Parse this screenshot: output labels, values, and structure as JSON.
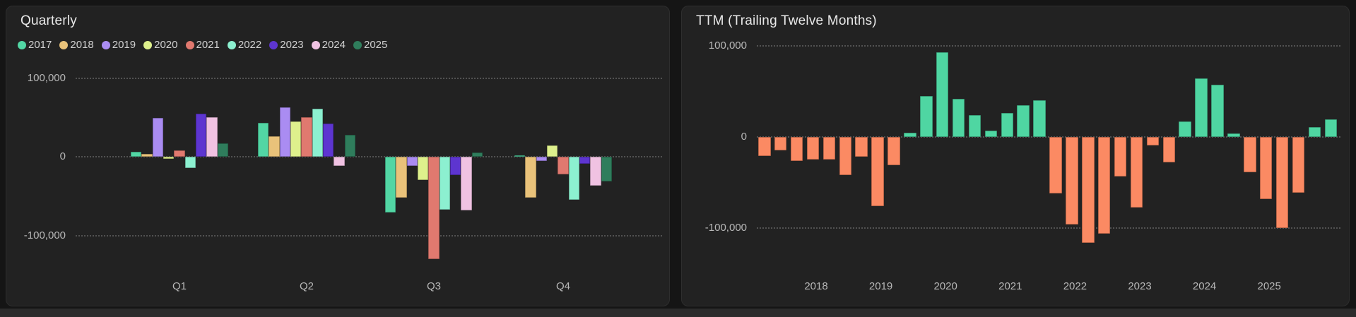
{
  "colors": {
    "page_bg": "#151515",
    "panel_bg": "#222222",
    "title_text": "#e8e8e8",
    "axis_text": "#b8b8b8",
    "legend_text": "#d0d0d0",
    "gridline": "#636363",
    "ttm_positive": "#4fd6a2",
    "ttm_negative": "#fb8a63"
  },
  "quarterly": {
    "title": "Quarterly"
  },
  "ttm": {
    "title": "TTM (Trailing Twelve Months)"
  },
  "chart_data": [
    {
      "id": "quarterly",
      "type": "bar",
      "title": "Quarterly",
      "categories": [
        "Q1",
        "Q2",
        "Q3",
        "Q4"
      ],
      "series": [
        {
          "name": "2017",
          "color": "#52d6a4",
          "values": [
            6000,
            43000,
            -71000,
            2000
          ]
        },
        {
          "name": "2018",
          "color": "#e9c27a",
          "values": [
            4000,
            26000,
            -52000,
            -52000
          ]
        },
        {
          "name": "2019",
          "color": "#aa8cf2",
          "values": [
            49000,
            63000,
            -12000,
            -5000
          ]
        },
        {
          "name": "2020",
          "color": "#def08c",
          "values": [
            -3000,
            45000,
            -30000,
            14000
          ]
        },
        {
          "name": "2021",
          "color": "#e0796f",
          "values": [
            8000,
            50000,
            -130000,
            -22000
          ]
        },
        {
          "name": "2022",
          "color": "#8cf0d0",
          "values": [
            -14000,
            61000,
            -67000,
            -55000
          ]
        },
        {
          "name": "2023",
          "color": "#5d35d0",
          "values": [
            55000,
            42000,
            -23000,
            -9000
          ]
        },
        {
          "name": "2024",
          "color": "#f0c2e2",
          "values": [
            50000,
            -12000,
            -68000,
            -37000
          ]
        },
        {
          "name": "2025",
          "color": "#2f7d5c",
          "values": [
            17000,
            28000,
            5000,
            -31000
          ]
        }
      ],
      "y_ticks": [
        {
          "value": 100000,
          "label": "100,000"
        },
        {
          "value": 0,
          "label": "0"
        },
        {
          "value": -100000,
          "label": "-100,000"
        }
      ],
      "ylim": [
        -100000,
        100000
      ],
      "grid": "dotted",
      "legend_position": "top"
    },
    {
      "id": "ttm",
      "type": "bar",
      "title": "TTM (Trailing Twelve Months)",
      "bars_per_year": 4,
      "x_start_year": "2017",
      "x_axis_labels": [
        "2018",
        "2019",
        "2020",
        "2021",
        "2022",
        "2023",
        "2024",
        "2025"
      ],
      "values": [
        -21000,
        -15000,
        -26000,
        -25000,
        -25000,
        -42000,
        -22000,
        -76000,
        -31000,
        5000,
        45000,
        93000,
        42000,
        24000,
        7000,
        26000,
        35000,
        40000,
        -62000,
        -96000,
        -116000,
        -106000,
        -43000,
        -77000,
        -9000,
        -28000,
        17000,
        64000,
        57000,
        4000,
        -39000,
        -68000,
        -100000,
        -61000,
        11000,
        19000
      ],
      "positive_color": "#4fd6a2",
      "negative_color": "#fb8a63",
      "y_ticks": [
        {
          "value": 100000,
          "label": "100,000"
        },
        {
          "value": 0,
          "label": "0"
        },
        {
          "value": -100000,
          "label": "-100,000"
        }
      ],
      "ylim": [
        -100000,
        100000
      ],
      "grid": "dotted",
      "legend_position": "none"
    }
  ]
}
